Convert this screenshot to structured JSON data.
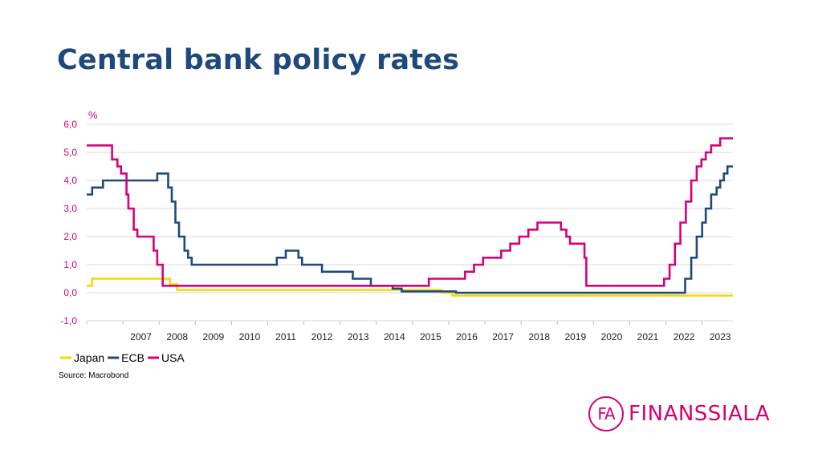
{
  "slide": {
    "title": "Central bank policy rates",
    "source": "Source: Macrobond",
    "logo": {
      "mark": "FA",
      "name": "FINANSSIALA",
      "color": "#d6006f"
    }
  },
  "chart_data": {
    "type": "line",
    "ylabel": "%",
    "ylim": [
      -1.0,
      6.0
    ],
    "yticks": [
      -1.0,
      0.0,
      1.0,
      2.0,
      3.0,
      4.0,
      5.0,
      6.0
    ],
    "ytick_labels": [
      "-1,0",
      "0,0",
      "1,0",
      "2,0",
      "3,0",
      "4,0",
      "5,0",
      "6,0"
    ],
    "xlim": [
      2006.0,
      2023.85
    ],
    "xtick_labels": [
      "2007",
      "2008",
      "2009",
      "2010",
      "2011",
      "2012",
      "2013",
      "2014",
      "2015",
      "2016",
      "2017",
      "2018",
      "2019",
      "2020",
      "2021",
      "2022",
      "2023"
    ],
    "grid": true,
    "legend_position": "bottom-left",
    "series": [
      {
        "name": "Japan",
        "color": "#f5d800",
        "points": [
          [
            2006.0,
            0.25
          ],
          [
            2006.15,
            0.25
          ],
          [
            2006.15,
            0.5
          ],
          [
            2007.35,
            0.5
          ],
          [
            2008.3,
            0.5
          ],
          [
            2008.3,
            0.3
          ],
          [
            2008.5,
            0.3
          ],
          [
            2008.5,
            0.1
          ],
          [
            2015.8,
            0.1
          ],
          [
            2015.8,
            0.0
          ],
          [
            2016.1,
            0.0
          ],
          [
            2016.1,
            -0.1
          ],
          [
            2023.85,
            -0.1
          ]
        ]
      },
      {
        "name": "ECB",
        "color": "#1f497d",
        "points": [
          [
            2006.0,
            3.5
          ],
          [
            2006.15,
            3.5
          ],
          [
            2006.15,
            3.75
          ],
          [
            2006.45,
            3.75
          ],
          [
            2006.45,
            4.0
          ],
          [
            2007.4,
            4.0
          ],
          [
            2007.95,
            4.0
          ],
          [
            2007.95,
            4.25
          ],
          [
            2008.25,
            4.25
          ],
          [
            2008.25,
            3.75
          ],
          [
            2008.35,
            3.75
          ],
          [
            2008.35,
            3.25
          ],
          [
            2008.45,
            3.25
          ],
          [
            2008.45,
            2.5
          ],
          [
            2008.55,
            2.5
          ],
          [
            2008.55,
            2.0
          ],
          [
            2008.7,
            2.0
          ],
          [
            2008.7,
            1.5
          ],
          [
            2008.8,
            1.5
          ],
          [
            2008.8,
            1.25
          ],
          [
            2008.9,
            1.25
          ],
          [
            2008.9,
            1.0
          ],
          [
            2011.25,
            1.0
          ],
          [
            2011.25,
            1.25
          ],
          [
            2011.5,
            1.25
          ],
          [
            2011.5,
            1.5
          ],
          [
            2011.85,
            1.5
          ],
          [
            2011.85,
            1.25
          ],
          [
            2011.95,
            1.25
          ],
          [
            2011.95,
            1.0
          ],
          [
            2012.5,
            1.0
          ],
          [
            2012.5,
            0.75
          ],
          [
            2013.35,
            0.75
          ],
          [
            2013.35,
            0.5
          ],
          [
            2013.85,
            0.5
          ],
          [
            2013.85,
            0.25
          ],
          [
            2014.45,
            0.25
          ],
          [
            2014.45,
            0.15
          ],
          [
            2014.7,
            0.15
          ],
          [
            2014.7,
            0.05
          ],
          [
            2016.2,
            0.05
          ],
          [
            2016.2,
            0.0
          ],
          [
            2022.53,
            0.0
          ],
          [
            2022.53,
            0.5
          ],
          [
            2022.7,
            0.5
          ],
          [
            2022.7,
            1.25
          ],
          [
            2022.85,
            1.25
          ],
          [
            2022.85,
            2.0
          ],
          [
            2023.0,
            2.0
          ],
          [
            2023.0,
            2.5
          ],
          [
            2023.1,
            2.5
          ],
          [
            2023.1,
            3.0
          ],
          [
            2023.25,
            3.0
          ],
          [
            2023.25,
            3.5
          ],
          [
            2023.4,
            3.5
          ],
          [
            2023.4,
            3.75
          ],
          [
            2023.5,
            3.75
          ],
          [
            2023.5,
            4.0
          ],
          [
            2023.6,
            4.0
          ],
          [
            2023.6,
            4.25
          ],
          [
            2023.7,
            4.25
          ],
          [
            2023.7,
            4.5
          ],
          [
            2023.85,
            4.5
          ]
        ]
      },
      {
        "name": "USA",
        "color": "#d6007a",
        "points": [
          [
            2006.0,
            5.25
          ],
          [
            2006.7,
            5.25
          ],
          [
            2006.7,
            4.75
          ],
          [
            2006.85,
            4.75
          ],
          [
            2006.85,
            4.5
          ],
          [
            2006.95,
            4.5
          ],
          [
            2006.95,
            4.25
          ],
          [
            2007.1,
            4.25
          ],
          [
            2007.1,
            3.5
          ],
          [
            2007.15,
            3.5
          ],
          [
            2007.15,
            3.0
          ],
          [
            2007.3,
            3.0
          ],
          [
            2007.3,
            2.25
          ],
          [
            2007.4,
            2.25
          ],
          [
            2007.4,
            2.0
          ],
          [
            2007.85,
            2.0
          ],
          [
            2007.85,
            1.5
          ],
          [
            2007.95,
            1.5
          ],
          [
            2007.95,
            1.0
          ],
          [
            2008.1,
            1.0
          ],
          [
            2008.1,
            0.25
          ],
          [
            2008.5,
            0.25
          ],
          [
            2015.45,
            0.25
          ],
          [
            2015.45,
            0.5
          ],
          [
            2016.45,
            0.5
          ],
          [
            2016.45,
            0.75
          ],
          [
            2016.7,
            0.75
          ],
          [
            2016.7,
            1.0
          ],
          [
            2016.95,
            1.0
          ],
          [
            2016.95,
            1.25
          ],
          [
            2017.45,
            1.25
          ],
          [
            2017.45,
            1.5
          ],
          [
            2017.7,
            1.5
          ],
          [
            2017.7,
            1.75
          ],
          [
            2017.95,
            1.75
          ],
          [
            2017.95,
            2.0
          ],
          [
            2018.2,
            2.0
          ],
          [
            2018.2,
            2.25
          ],
          [
            2018.45,
            2.25
          ],
          [
            2018.45,
            2.5
          ],
          [
            2019.1,
            2.5
          ],
          [
            2019.1,
            2.25
          ],
          [
            2019.25,
            2.25
          ],
          [
            2019.25,
            2.0
          ],
          [
            2019.35,
            2.0
          ],
          [
            2019.35,
            1.75
          ],
          [
            2019.75,
            1.75
          ],
          [
            2019.75,
            1.25
          ],
          [
            2019.8,
            1.25
          ],
          [
            2019.8,
            0.25
          ],
          [
            2021.95,
            0.25
          ],
          [
            2021.95,
            0.5
          ],
          [
            2022.1,
            0.5
          ],
          [
            2022.1,
            1.0
          ],
          [
            2022.25,
            1.0
          ],
          [
            2022.25,
            1.75
          ],
          [
            2022.4,
            1.75
          ],
          [
            2022.4,
            2.5
          ],
          [
            2022.55,
            2.5
          ],
          [
            2022.55,
            3.25
          ],
          [
            2022.7,
            3.25
          ],
          [
            2022.7,
            4.0
          ],
          [
            2022.85,
            4.0
          ],
          [
            2022.85,
            4.5
          ],
          [
            2022.98,
            4.5
          ],
          [
            2022.98,
            4.75
          ],
          [
            2023.1,
            4.75
          ],
          [
            2023.1,
            5.0
          ],
          [
            2023.25,
            5.0
          ],
          [
            2023.25,
            5.25
          ],
          [
            2023.5,
            5.25
          ],
          [
            2023.5,
            5.5
          ],
          [
            2023.85,
            5.5
          ]
        ]
      }
    ]
  }
}
